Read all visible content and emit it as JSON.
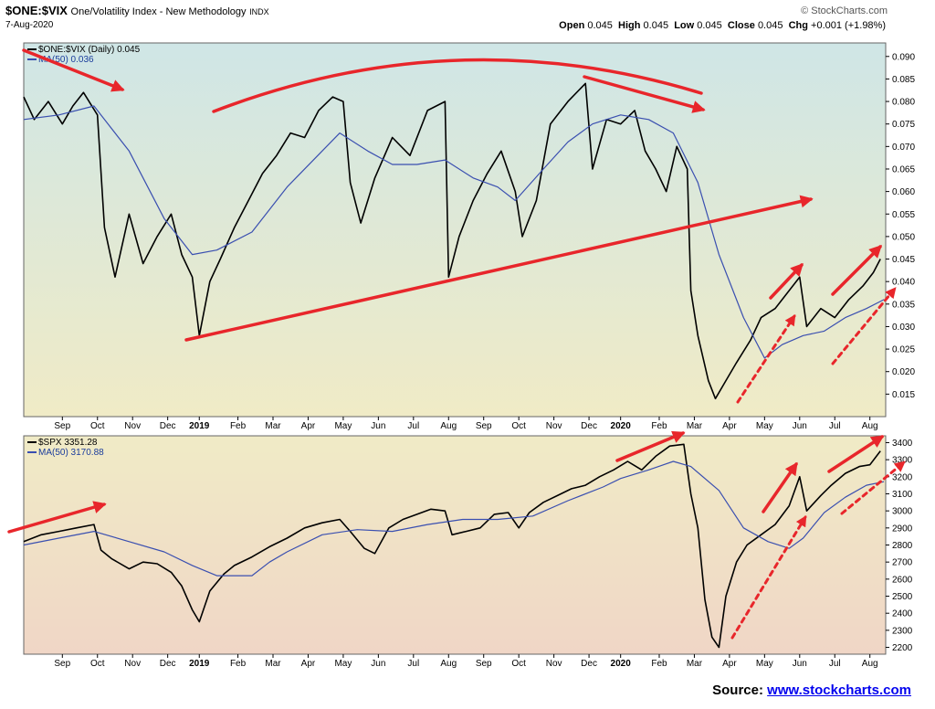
{
  "header": {
    "symbol": "$ONE:$VIX",
    "name": "One/Volatility Index - New Methodology",
    "exchange": "INDX",
    "date": "7-Aug-2020",
    "logo": "© StockCharts.com",
    "open_label": "Open",
    "open": "0.045",
    "high_label": "High",
    "high": "0.045",
    "low_label": "Low",
    "low": "0.045",
    "close_label": "Close",
    "close": "0.045",
    "chg_label": "Chg",
    "chg": "+0.001 (+1.98%)"
  },
  "source": {
    "label": "Source:",
    "link": "www.stockcharts.com"
  },
  "colors": {
    "price": "#000000",
    "ma": "#3a4fb0",
    "arrow": "#e8262b",
    "bg_top": "#cfe6e6",
    "bg_mid": "#f0ebc6",
    "bg_bottom": "#f0d6c6"
  },
  "chart_data": [
    {
      "type": "line",
      "legend": [
        "$ONE:$VIX (Daily) 0.045",
        "MA(50) 0.036"
      ],
      "y_ticks": [
        "0.015",
        "0.020",
        "0.025",
        "0.030",
        "0.035",
        "0.040",
        "0.045",
        "0.050",
        "0.055",
        "0.060",
        "0.065",
        "0.070",
        "0.075",
        "0.080",
        "0.085",
        "0.090"
      ],
      "ylim": [
        0.01,
        0.093
      ],
      "grid": false,
      "x_ticks": [
        {
          "label": "Sep",
          "t": 3.1
        },
        {
          "label": "Oct",
          "t": 4.1
        },
        {
          "label": "Nov",
          "t": 5.1
        },
        {
          "label": "Dec",
          "t": 6.1
        },
        {
          "label": "2019",
          "t": 7.0,
          "bold": true
        },
        {
          "label": "Feb",
          "t": 8.1
        },
        {
          "label": "Mar",
          "t": 9.1
        },
        {
          "label": "Apr",
          "t": 10.1
        },
        {
          "label": "May",
          "t": 11.1
        },
        {
          "label": "Jun",
          "t": 12.1
        },
        {
          "label": "Jul",
          "t": 13.1
        },
        {
          "label": "Aug",
          "t": 14.1
        },
        {
          "label": "Sep",
          "t": 15.1
        },
        {
          "label": "Oct",
          "t": 16.1
        },
        {
          "label": "Nov",
          "t": 17.1
        },
        {
          "label": "Dec",
          "t": 18.1
        },
        {
          "label": "2020",
          "t": 19.0,
          "bold": true
        },
        {
          "label": "Feb",
          "t": 20.1
        },
        {
          "label": "Mar",
          "t": 21.1
        },
        {
          "label": "Apr",
          "t": 22.1
        },
        {
          "label": "May",
          "t": 23.1
        },
        {
          "label": "Jun",
          "t": 24.1
        },
        {
          "label": "Jul",
          "t": 25.1
        },
        {
          "label": "Aug",
          "t": 26.1
        }
      ],
      "series": [
        {
          "name": "$ONE:$VIX (Daily)",
          "points": [
            [
              2.0,
              0.081
            ],
            [
              2.3,
              0.076
            ],
            [
              2.7,
              0.08
            ],
            [
              3.1,
              0.075
            ],
            [
              3.4,
              0.079
            ],
            [
              3.7,
              0.082
            ],
            [
              4.1,
              0.077
            ],
            [
              4.3,
              0.052
            ],
            [
              4.6,
              0.041
            ],
            [
              5.0,
              0.055
            ],
            [
              5.4,
              0.044
            ],
            [
              5.8,
              0.05
            ],
            [
              6.2,
              0.055
            ],
            [
              6.5,
              0.046
            ],
            [
              6.8,
              0.041
            ],
            [
              7.0,
              0.028
            ],
            [
              7.3,
              0.04
            ],
            [
              7.6,
              0.045
            ],
            [
              8.0,
              0.052
            ],
            [
              8.4,
              0.058
            ],
            [
              8.8,
              0.064
            ],
            [
              9.2,
              0.068
            ],
            [
              9.6,
              0.073
            ],
            [
              10.0,
              0.072
            ],
            [
              10.4,
              0.078
            ],
            [
              10.8,
              0.081
            ],
            [
              11.1,
              0.08
            ],
            [
              11.3,
              0.062
            ],
            [
              11.6,
              0.053
            ],
            [
              12.0,
              0.063
            ],
            [
              12.5,
              0.072
            ],
            [
              13.0,
              0.068
            ],
            [
              13.5,
              0.078
            ],
            [
              14.0,
              0.08
            ],
            [
              14.1,
              0.041
            ],
            [
              14.4,
              0.05
            ],
            [
              14.8,
              0.058
            ],
            [
              15.2,
              0.064
            ],
            [
              15.6,
              0.069
            ],
            [
              16.0,
              0.06
            ],
            [
              16.2,
              0.05
            ],
            [
              16.6,
              0.058
            ],
            [
              17.0,
              0.075
            ],
            [
              17.5,
              0.08
            ],
            [
              18.0,
              0.084
            ],
            [
              18.2,
              0.065
            ],
            [
              18.6,
              0.076
            ],
            [
              19.0,
              0.075
            ],
            [
              19.4,
              0.078
            ],
            [
              19.7,
              0.069
            ],
            [
              20.0,
              0.065
            ],
            [
              20.3,
              0.06
            ],
            [
              20.6,
              0.07
            ],
            [
              20.9,
              0.065
            ],
            [
              21.0,
              0.038
            ],
            [
              21.2,
              0.028
            ],
            [
              21.5,
              0.018
            ],
            [
              21.7,
              0.014
            ],
            [
              22.0,
              0.018
            ],
            [
              22.3,
              0.022
            ],
            [
              22.7,
              0.027
            ],
            [
              23.0,
              0.032
            ],
            [
              23.4,
              0.034
            ],
            [
              23.8,
              0.038
            ],
            [
              24.1,
              0.041
            ],
            [
              24.3,
              0.03
            ],
            [
              24.7,
              0.034
            ],
            [
              25.1,
              0.032
            ],
            [
              25.5,
              0.036
            ],
            [
              25.9,
              0.039
            ],
            [
              26.2,
              0.042
            ],
            [
              26.4,
              0.045
            ]
          ]
        },
        {
          "name": "MA(50)",
          "points": [
            [
              2.0,
              0.076
            ],
            [
              3.0,
              0.077
            ],
            [
              4.0,
              0.079
            ],
            [
              5.0,
              0.069
            ],
            [
              6.0,
              0.054
            ],
            [
              6.8,
              0.046
            ],
            [
              7.5,
              0.047
            ],
            [
              8.5,
              0.051
            ],
            [
              9.5,
              0.061
            ],
            [
              10.5,
              0.069
            ],
            [
              11.0,
              0.073
            ],
            [
              11.8,
              0.069
            ],
            [
              12.5,
              0.066
            ],
            [
              13.2,
              0.066
            ],
            [
              14.0,
              0.067
            ],
            [
              14.8,
              0.063
            ],
            [
              15.5,
              0.061
            ],
            [
              16.0,
              0.058
            ],
            [
              16.8,
              0.065
            ],
            [
              17.5,
              0.071
            ],
            [
              18.2,
              0.075
            ],
            [
              19.0,
              0.077
            ],
            [
              19.8,
              0.076
            ],
            [
              20.5,
              0.073
            ],
            [
              21.2,
              0.062
            ],
            [
              21.8,
              0.046
            ],
            [
              22.5,
              0.032
            ],
            [
              23.1,
              0.023
            ],
            [
              23.6,
              0.026
            ],
            [
              24.2,
              0.028
            ],
            [
              24.8,
              0.029
            ],
            [
              25.4,
              0.032
            ],
            [
              26.0,
              0.034
            ],
            [
              26.5,
              0.036
            ]
          ]
        }
      ]
    },
    {
      "type": "line",
      "legend": [
        "$SPX 3351.28",
        "MA(50) 3170.88"
      ],
      "y_ticks": [
        "2200",
        "2300",
        "2400",
        "2500",
        "2600",
        "2700",
        "2800",
        "2900",
        "3000",
        "3100",
        "3200",
        "3300",
        "3400"
      ],
      "ylim": [
        2160,
        3440
      ],
      "grid": false,
      "x_ticks": [
        {
          "label": "Sep",
          "t": 3.1
        },
        {
          "label": "Oct",
          "t": 4.1
        },
        {
          "label": "Nov",
          "t": 5.1
        },
        {
          "label": "Dec",
          "t": 6.1
        },
        {
          "label": "2019",
          "t": 7.0,
          "bold": true
        },
        {
          "label": "Feb",
          "t": 8.1
        },
        {
          "label": "Mar",
          "t": 9.1
        },
        {
          "label": "Apr",
          "t": 10.1
        },
        {
          "label": "May",
          "t": 11.1
        },
        {
          "label": "Jun",
          "t": 12.1
        },
        {
          "label": "Jul",
          "t": 13.1
        },
        {
          "label": "Aug",
          "t": 14.1
        },
        {
          "label": "Sep",
          "t": 15.1
        },
        {
          "label": "Oct",
          "t": 16.1
        },
        {
          "label": "Nov",
          "t": 17.1
        },
        {
          "label": "Dec",
          "t": 18.1
        },
        {
          "label": "2020",
          "t": 19.0,
          "bold": true
        },
        {
          "label": "Feb",
          "t": 20.1
        },
        {
          "label": "Mar",
          "t": 21.1
        },
        {
          "label": "Apr",
          "t": 22.1
        },
        {
          "label": "May",
          "t": 23.1
        },
        {
          "label": "Jun",
          "t": 24.1
        },
        {
          "label": "Jul",
          "t": 25.1
        },
        {
          "label": "Aug",
          "t": 26.1
        }
      ],
      "series": [
        {
          "name": "$SPX",
          "points": [
            [
              2.0,
              2820
            ],
            [
              2.5,
              2860
            ],
            [
              3.0,
              2880
            ],
            [
              3.5,
              2900
            ],
            [
              4.0,
              2920
            ],
            [
              4.2,
              2770
            ],
            [
              4.5,
              2720
            ],
            [
              5.0,
              2660
            ],
            [
              5.4,
              2700
            ],
            [
              5.8,
              2690
            ],
            [
              6.2,
              2640
            ],
            [
              6.5,
              2560
            ],
            [
              6.8,
              2420
            ],
            [
              7.0,
              2350
            ],
            [
              7.3,
              2530
            ],
            [
              7.7,
              2630
            ],
            [
              8.0,
              2680
            ],
            [
              8.5,
              2730
            ],
            [
              9.0,
              2790
            ],
            [
              9.5,
              2840
            ],
            [
              10.0,
              2900
            ],
            [
              10.5,
              2930
            ],
            [
              11.0,
              2950
            ],
            [
              11.3,
              2880
            ],
            [
              11.7,
              2780
            ],
            [
              12.0,
              2750
            ],
            [
              12.4,
              2900
            ],
            [
              12.8,
              2950
            ],
            [
              13.2,
              2980
            ],
            [
              13.6,
              3010
            ],
            [
              14.0,
              3000
            ],
            [
              14.2,
              2860
            ],
            [
              14.6,
              2880
            ],
            [
              15.0,
              2900
            ],
            [
              15.4,
              2980
            ],
            [
              15.8,
              2990
            ],
            [
              16.1,
              2900
            ],
            [
              16.4,
              2990
            ],
            [
              16.8,
              3050
            ],
            [
              17.2,
              3090
            ],
            [
              17.6,
              3130
            ],
            [
              18.0,
              3150
            ],
            [
              18.4,
              3200
            ],
            [
              18.8,
              3240
            ],
            [
              19.2,
              3290
            ],
            [
              19.6,
              3240
            ],
            [
              20.0,
              3320
            ],
            [
              20.4,
              3380
            ],
            [
              20.8,
              3390
            ],
            [
              21.0,
              3100
            ],
            [
              21.2,
              2900
            ],
            [
              21.4,
              2480
            ],
            [
              21.6,
              2260
            ],
            [
              21.8,
              2200
            ],
            [
              22.0,
              2500
            ],
            [
              22.3,
              2700
            ],
            [
              22.6,
              2800
            ],
            [
              23.0,
              2860
            ],
            [
              23.4,
              2920
            ],
            [
              23.8,
              3030
            ],
            [
              24.1,
              3200
            ],
            [
              24.3,
              3000
            ],
            [
              24.7,
              3090
            ],
            [
              25.0,
              3150
            ],
            [
              25.4,
              3220
            ],
            [
              25.8,
              3260
            ],
            [
              26.1,
              3270
            ],
            [
              26.4,
              3351
            ]
          ]
        },
        {
          "name": "MA(50)",
          "points": [
            [
              2.0,
              2800
            ],
            [
              3.0,
              2840
            ],
            [
              4.0,
              2880
            ],
            [
              5.0,
              2820
            ],
            [
              6.0,
              2760
            ],
            [
              6.8,
              2680
            ],
            [
              7.5,
              2620
            ],
            [
              8.5,
              2620
            ],
            [
              9.0,
              2700
            ],
            [
              9.5,
              2760
            ],
            [
              10.5,
              2860
            ],
            [
              11.5,
              2890
            ],
            [
              12.5,
              2880
            ],
            [
              13.5,
              2920
            ],
            [
              14.5,
              2950
            ],
            [
              15.5,
              2950
            ],
            [
              16.5,
              2970
            ],
            [
              17.5,
              3060
            ],
            [
              18.5,
              3140
            ],
            [
              19.0,
              3190
            ],
            [
              19.8,
              3240
            ],
            [
              20.5,
              3290
            ],
            [
              21.0,
              3260
            ],
            [
              21.8,
              3120
            ],
            [
              22.5,
              2900
            ],
            [
              23.2,
              2820
            ],
            [
              23.8,
              2780
            ],
            [
              24.2,
              2840
            ],
            [
              24.8,
              2990
            ],
            [
              25.4,
              3080
            ],
            [
              26.0,
              3150
            ],
            [
              26.5,
              3171
            ]
          ]
        }
      ]
    }
  ]
}
